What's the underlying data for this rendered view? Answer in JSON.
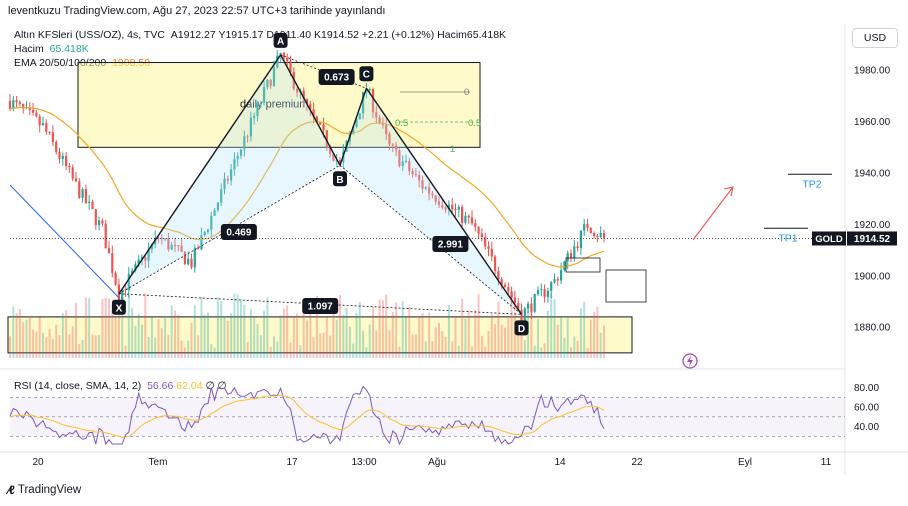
{
  "caption": "leventkuzu TradingView.com, Ağu 27, 2023 22:57 UTC+3 tarihinde yayınlandı",
  "legend": {
    "symbol_line": "Altın KFSleri (USS/OZ), 4s, TVC",
    "ohlc": "A1912.27  Y1915.17  D1911.40  K1914.52  +2.21 (+0.12%)  Hacim65.418K",
    "volume_label": "Hacim",
    "volume_value": "65.418K",
    "ema_label": "EMA 20/50/100/200",
    "ema_value": "1908.50",
    "rsi_label": "RSI (14, close, SMA, 14, 2)",
    "rsi_value": "56.66",
    "rsi_ma": "62.04",
    "rsi_extra": "∅ ∅"
  },
  "currency_button": "USD",
  "brand": "TradingView",
  "colors": {
    "up": "#26a69a",
    "down": "#ef5350",
    "ema": "#f5a623",
    "rsi": "#7e57c2",
    "rsi_ma": "#fbc02d",
    "zone": "#fff59d",
    "pattern": "#b3e5fc",
    "arrow": "#ef5350"
  },
  "chart_data": {
    "type": "candlestick",
    "symbol": "GOLD",
    "last_price": "1914.52",
    "last_label": "GOLD",
    "ylim": [
      1868,
      1998
    ],
    "y_ticks": [
      "1980.00",
      "1960.00",
      "1940.00",
      "1920.00",
      "1900.00",
      "1880.00"
    ],
    "y_tick_values": [
      1980,
      1960,
      1940,
      1920,
      1900,
      1880
    ],
    "x_ticks": [
      "20",
      "Tem",
      "17",
      "13:00",
      "Ağu",
      "14",
      "22",
      "Eyl",
      "11"
    ],
    "rsi_ticks": [
      "80.00",
      "60.00",
      "40.00"
    ],
    "rsi_tick_values": [
      80,
      60,
      40
    ],
    "harmonic_points": [
      {
        "label": "X",
        "bar": 33,
        "price": 1893
      },
      {
        "label": "A",
        "bar": 82,
        "price": 1986
      },
      {
        "label": "B",
        "bar": 100,
        "price": 1943
      },
      {
        "label": "C",
        "bar": 108,
        "price": 1973
      },
      {
        "label": "D",
        "bar": 155,
        "price": 1885
      }
    ],
    "ratios": [
      "0.469",
      "0.673",
      "2.991",
      "1.097"
    ],
    "zones": [
      {
        "label": "daily premium",
        "from_price": 1950,
        "to_price": 1983
      },
      {
        "label": "",
        "from_price": 1870,
        "to_price": 1884
      }
    ],
    "fib_labels": [
      "0",
      "0.5",
      "0.5",
      "1"
    ],
    "targets": [
      {
        "label": "TP1",
        "price": 1918.5
      },
      {
        "label": "TP2",
        "price": 1939.5
      }
    ]
  }
}
